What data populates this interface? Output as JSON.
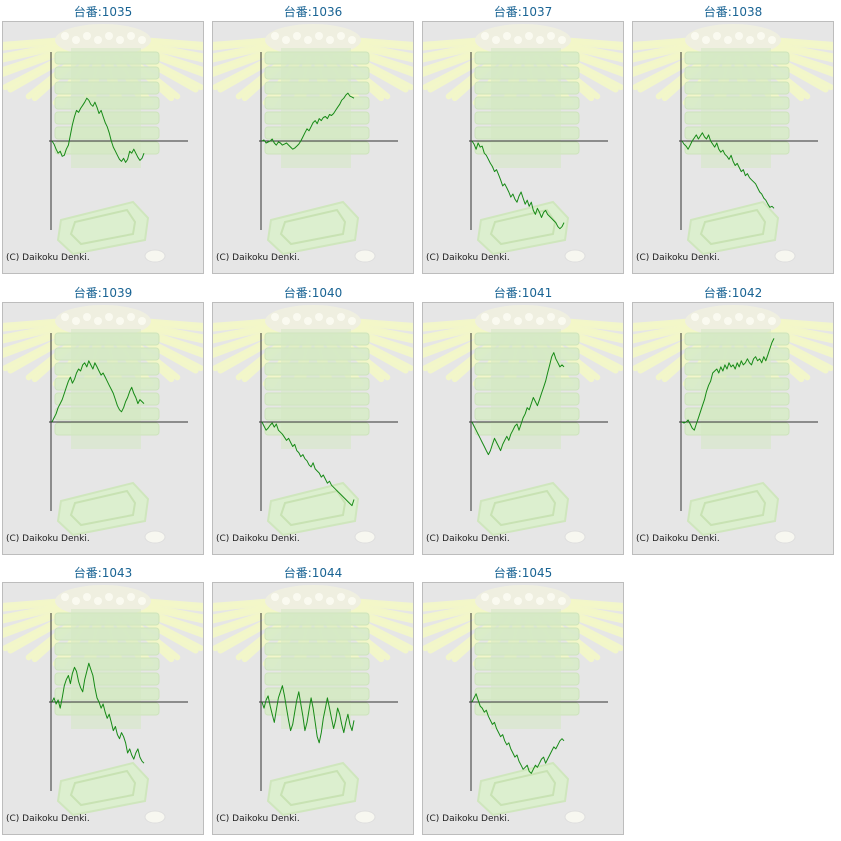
{
  "page": {
    "unit_label": "台番:"
  },
  "copyright": "(C) Daikoku Denki.",
  "colors": {
    "line": "#178a17",
    "title": "#1a6494",
    "axis": "#333333",
    "panel_bg": "#e6e6e6",
    "watermark": "#f3f8d6"
  },
  "chart_data": [
    {
      "type": "line",
      "title": "1035",
      "xlabel": "",
      "ylabel": "",
      "grid": false,
      "x": [
        0,
        1,
        2,
        3,
        4,
        5,
        6,
        7,
        8,
        9,
        10,
        11,
        12,
        13,
        14,
        15,
        16,
        17,
        18,
        19,
        20,
        21,
        22,
        23,
        24,
        25,
        26,
        27,
        28,
        29,
        30,
        31,
        32,
        33,
        34,
        35,
        36,
        37,
        38,
        39,
        40,
        41,
        42,
        43,
        44,
        45
      ],
      "values": [
        0,
        -3,
        -8,
        -12,
        -10,
        -15,
        -14,
        -8,
        -4,
        6,
        16,
        24,
        30,
        28,
        32,
        35,
        38,
        42,
        40,
        36,
        34,
        38,
        33,
        27,
        30,
        24,
        18,
        14,
        8,
        0,
        -6,
        -10,
        -14,
        -18,
        -20,
        -17,
        -21,
        -18,
        -10,
        -12,
        -8,
        -12,
        -16,
        -19,
        -17,
        -12
      ]
    },
    {
      "type": "line",
      "title": "1036",
      "xlabel": "",
      "ylabel": "",
      "grid": false,
      "x": [
        0,
        1,
        2,
        3,
        4,
        5,
        6,
        7,
        8,
        9,
        10,
        11,
        12,
        13,
        14,
        15,
        16,
        17,
        18,
        19,
        20,
        21,
        22,
        23,
        24,
        25,
        26,
        27,
        28,
        29,
        30,
        31,
        32,
        33,
        34,
        35,
        36,
        37,
        38,
        39,
        40,
        41,
        42,
        43,
        44,
        45
      ],
      "values": [
        0,
        1,
        -2,
        -1,
        0,
        2,
        -2,
        -4,
        -1,
        -2,
        -4,
        -3,
        -2,
        -4,
        -6,
        -8,
        -7,
        -5,
        -3,
        0,
        4,
        8,
        12,
        10,
        14,
        18,
        20,
        17,
        22,
        20,
        23,
        24,
        22,
        26,
        25,
        27,
        30,
        33,
        36,
        40,
        42,
        45,
        47,
        44,
        43,
        42
      ]
    },
    {
      "type": "line",
      "title": "1037",
      "xlabel": "",
      "ylabel": "",
      "grid": false,
      "x": [
        0,
        1,
        2,
        3,
        4,
        5,
        6,
        7,
        8,
        9,
        10,
        11,
        12,
        13,
        14,
        15,
        16,
        17,
        18,
        19,
        20,
        21,
        22,
        23,
        24,
        25,
        26,
        27,
        28,
        29,
        30,
        31,
        32,
        33,
        34,
        35,
        36,
        37,
        38,
        39,
        40,
        41,
        42,
        43,
        44,
        45
      ],
      "values": [
        0,
        -3,
        -8,
        -2,
        -6,
        -5,
        -12,
        -14,
        -18,
        -22,
        -25,
        -30,
        -28,
        -33,
        -38,
        -44,
        -42,
        -46,
        -50,
        -55,
        -52,
        -57,
        -60,
        -54,
        -50,
        -56,
        -62,
        -58,
        -64,
        -60,
        -68,
        -72,
        -66,
        -70,
        -75,
        -70,
        -68,
        -72,
        -74,
        -76,
        -78,
        -80,
        -84,
        -86,
        -84,
        -80
      ]
    },
    {
      "type": "line",
      "title": "1038",
      "xlabel": "",
      "ylabel": "",
      "grid": false,
      "x": [
        0,
        1,
        2,
        3,
        4,
        5,
        6,
        7,
        8,
        9,
        10,
        11,
        12,
        13,
        14,
        15,
        16,
        17,
        18,
        19,
        20,
        21,
        22,
        23,
        24,
        25,
        26,
        27,
        28,
        29,
        30,
        31,
        32,
        33,
        34,
        35,
        36,
        37,
        38,
        39,
        40,
        41,
        42,
        43,
        44,
        45
      ],
      "values": [
        0,
        -3,
        -5,
        -8,
        -4,
        0,
        3,
        6,
        2,
        5,
        8,
        4,
        2,
        6,
        0,
        -3,
        -6,
        -2,
        -8,
        -11,
        -9,
        -13,
        -15,
        -18,
        -14,
        -20,
        -24,
        -22,
        -26,
        -30,
        -28,
        -34,
        -32,
        -36,
        -38,
        -40,
        -42,
        -46,
        -50,
        -52,
        -56,
        -58,
        -62,
        -65,
        -64,
        -66
      ]
    },
    {
      "type": "line",
      "title": "1039",
      "xlabel": "",
      "ylabel": "",
      "grid": false,
      "x": [
        0,
        1,
        2,
        3,
        4,
        5,
        6,
        7,
        8,
        9,
        10,
        11,
        12,
        13,
        14,
        15,
        16,
        17,
        18,
        19,
        20,
        21,
        22,
        23,
        24,
        25,
        26,
        27,
        28,
        29,
        30,
        31,
        32,
        33,
        34,
        35,
        36,
        37,
        38,
        39,
        40,
        41,
        42,
        43,
        44,
        45
      ],
      "values": [
        0,
        4,
        8,
        14,
        18,
        22,
        28,
        34,
        40,
        44,
        38,
        42,
        48,
        52,
        50,
        56,
        58,
        54,
        60,
        56,
        52,
        58,
        54,
        50,
        46,
        48,
        44,
        40,
        36,
        32,
        28,
        22,
        16,
        12,
        10,
        14,
        20,
        24,
        30,
        34,
        28,
        24,
        18,
        22,
        20,
        18
      ]
    },
    {
      "type": "line",
      "title": "1040",
      "xlabel": "",
      "ylabel": "",
      "grid": false,
      "x": [
        0,
        1,
        2,
        3,
        4,
        5,
        6,
        7,
        8,
        9,
        10,
        11,
        12,
        13,
        14,
        15,
        16,
        17,
        18,
        19,
        20,
        21,
        22,
        23,
        24,
        25,
        26,
        27,
        28,
        29,
        30,
        31,
        32,
        33,
        34,
        35,
        36,
        37,
        38,
        39,
        40,
        41,
        42,
        43,
        44,
        45
      ],
      "values": [
        0,
        -4,
        -8,
        -6,
        -3,
        -1,
        -5,
        -2,
        -8,
        -10,
        -12,
        -15,
        -18,
        -16,
        -20,
        -24,
        -22,
        -28,
        -30,
        -34,
        -32,
        -36,
        -38,
        -42,
        -44,
        -40,
        -46,
        -48,
        -50,
        -54,
        -52,
        -56,
        -60,
        -58,
        -62,
        -64,
        -66,
        -68,
        -70,
        -72,
        -74,
        -76,
        -78,
        -80,
        -82,
        -76
      ]
    },
    {
      "type": "line",
      "title": "1041",
      "xlabel": "",
      "ylabel": "",
      "grid": false,
      "x": [
        0,
        1,
        2,
        3,
        4,
        5,
        6,
        7,
        8,
        9,
        10,
        11,
        12,
        13,
        14,
        15,
        16,
        17,
        18,
        19,
        20,
        21,
        22,
        23,
        24,
        25,
        26,
        27,
        28,
        29,
        30,
        31,
        32,
        33,
        34,
        35,
        36,
        37,
        38,
        39,
        40,
        41,
        42,
        43,
        44,
        45
      ],
      "values": [
        0,
        -4,
        -8,
        -12,
        -16,
        -20,
        -24,
        -28,
        -32,
        -28,
        -22,
        -16,
        -20,
        -24,
        -28,
        -22,
        -18,
        -14,
        -18,
        -12,
        -8,
        -4,
        -2,
        -8,
        -2,
        4,
        8,
        14,
        12,
        18,
        24,
        20,
        16,
        22,
        28,
        34,
        40,
        48,
        56,
        64,
        68,
        62,
        58,
        54,
        56,
        54
      ]
    },
    {
      "type": "line",
      "title": "1042",
      "xlabel": "",
      "ylabel": "",
      "grid": false,
      "x": [
        0,
        1,
        2,
        3,
        4,
        5,
        6,
        7,
        8,
        9,
        10,
        11,
        12,
        13,
        14,
        15,
        16,
        17,
        18,
        19,
        20,
        21,
        22,
        23,
        24,
        25,
        26,
        27,
        28,
        29,
        30,
        31,
        32,
        33,
        34,
        35,
        36,
        37,
        38,
        39,
        40,
        41,
        42,
        43,
        44,
        45
      ],
      "values": [
        0,
        -1,
        0,
        2,
        -2,
        -6,
        -8,
        -2,
        4,
        10,
        16,
        22,
        30,
        36,
        40,
        48,
        50,
        52,
        48,
        54,
        50,
        56,
        52,
        58,
        54,
        56,
        52,
        58,
        54,
        60,
        56,
        58,
        62,
        58,
        56,
        62,
        64,
        60,
        62,
        58,
        64,
        60,
        66,
        72,
        78,
        82
      ]
    },
    {
      "type": "line",
      "title": "1043",
      "xlabel": "",
      "ylabel": "",
      "grid": false,
      "x": [
        0,
        1,
        2,
        3,
        4,
        5,
        6,
        7,
        8,
        9,
        10,
        11,
        12,
        13,
        14,
        15,
        16,
        17,
        18,
        19,
        20,
        21,
        22,
        23,
        24,
        25,
        26,
        27,
        28,
        29,
        30,
        31,
        32,
        33,
        34,
        35,
        36,
        37,
        38,
        39,
        40,
        41,
        42,
        43,
        44,
        45
      ],
      "values": [
        0,
        4,
        -2,
        2,
        -6,
        4,
        16,
        22,
        26,
        18,
        28,
        34,
        30,
        20,
        14,
        10,
        22,
        30,
        38,
        32,
        26,
        14,
        4,
        0,
        -6,
        -2,
        -10,
        -16,
        -12,
        -20,
        -28,
        -24,
        -32,
        -36,
        -30,
        -34,
        -40,
        -50,
        -46,
        -52,
        -56,
        -50,
        -46,
        -54,
        -58,
        -60
      ]
    },
    {
      "type": "line",
      "title": "1044",
      "xlabel": "",
      "ylabel": "",
      "grid": false,
      "x": [
        0,
        1,
        2,
        3,
        4,
        5,
        6,
        7,
        8,
        9,
        10,
        11,
        12,
        13,
        14,
        15,
        16,
        17,
        18,
        19,
        20,
        21,
        22,
        23,
        24,
        25,
        26,
        27,
        28,
        29,
        30,
        31,
        32,
        33,
        34,
        35,
        36,
        37,
        38,
        39,
        40,
        41,
        42,
        43,
        44,
        45
      ],
      "values": [
        0,
        -6,
        2,
        6,
        -4,
        -12,
        -20,
        -8,
        4,
        10,
        16,
        6,
        -6,
        -18,
        -28,
        -22,
        -10,
        2,
        10,
        -2,
        -14,
        -28,
        -20,
        -8,
        4,
        -6,
        -20,
        -34,
        -40,
        -30,
        -16,
        -6,
        4,
        -6,
        -16,
        -26,
        -18,
        -6,
        -12,
        -22,
        -30,
        -20,
        -12,
        -22,
        -28,
        -18
      ]
    },
    {
      "type": "line",
      "title": "1045",
      "xlabel": "",
      "ylabel": "",
      "grid": false,
      "x": [
        0,
        1,
        2,
        3,
        4,
        5,
        6,
        7,
        8,
        9,
        10,
        11,
        12,
        13,
        14,
        15,
        16,
        17,
        18,
        19,
        20,
        21,
        22,
        23,
        24,
        25,
        26,
        27,
        28,
        29,
        30,
        31,
        32,
        33,
        34,
        35,
        36,
        37,
        38,
        39,
        40,
        41,
        42,
        43,
        44,
        45
      ],
      "values": [
        0,
        4,
        8,
        2,
        -4,
        -6,
        -10,
        -8,
        -14,
        -18,
        -22,
        -20,
        -26,
        -30,
        -34,
        -32,
        -38,
        -42,
        -40,
        -46,
        -50,
        -54,
        -52,
        -58,
        -62,
        -66,
        -64,
        -62,
        -68,
        -70,
        -66,
        -62,
        -64,
        -60,
        -56,
        -54,
        -60,
        -56,
        -52,
        -48,
        -44,
        -46,
        -42,
        -38,
        -36,
        -38
      ]
    }
  ]
}
